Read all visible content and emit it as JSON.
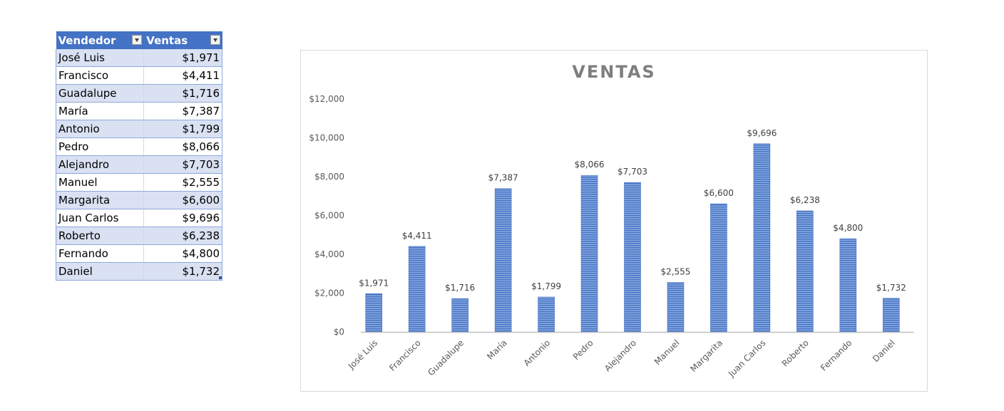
{
  "table": {
    "headers": [
      "Vendedor",
      "Ventas"
    ],
    "rows": [
      {
        "vendedor": "José Luis",
        "ventas": "$1,971"
      },
      {
        "vendedor": "Francisco",
        "ventas": "$4,411"
      },
      {
        "vendedor": "Guadalupe",
        "ventas": "$1,716"
      },
      {
        "vendedor": "María",
        "ventas": "$7,387"
      },
      {
        "vendedor": "Antonio",
        "ventas": "$1,799"
      },
      {
        "vendedor": "Pedro",
        "ventas": "$8,066"
      },
      {
        "vendedor": "Alejandro",
        "ventas": "$7,703"
      },
      {
        "vendedor": "Manuel",
        "ventas": "$2,555"
      },
      {
        "vendedor": "Margarita",
        "ventas": "$6,600"
      },
      {
        "vendedor": "Juan Carlos",
        "ventas": "$9,696"
      },
      {
        "vendedor": "Roberto",
        "ventas": "$6,238"
      },
      {
        "vendedor": "Fernando",
        "ventas": "$4,800"
      },
      {
        "vendedor": "Daniel",
        "ventas": "$1,732"
      }
    ],
    "header_color": "#4472c4",
    "band_color": "#d9e1f2"
  },
  "chart_data": {
    "type": "bar",
    "title": "VENTAS",
    "categories": [
      "José Luis",
      "Francisco",
      "Guadalupe",
      "María",
      "Antonio",
      "Pedro",
      "Alejandro",
      "Manuel",
      "Margarita",
      "Juan Carlos",
      "Roberto",
      "Fernando",
      "Daniel"
    ],
    "values": [
      1971,
      4411,
      1716,
      7387,
      1799,
      8066,
      7703,
      2555,
      6600,
      9696,
      6238,
      4800,
      1732
    ],
    "data_labels": [
      "$1,971",
      "$4,411",
      "$1,716",
      "$7,387",
      "$1,799",
      "$8,066",
      "$7,703",
      "$2,555",
      "$6,600",
      "$9,696",
      "$6,238",
      "$4,800",
      "$1,732"
    ],
    "y_ticks": [
      0,
      2000,
      4000,
      6000,
      8000,
      10000,
      12000
    ],
    "y_tick_labels": [
      "$0",
      "$2,000",
      "$4,000",
      "$6,000",
      "$8,000",
      "$10,000",
      "$12,000"
    ],
    "ylim": [
      0,
      12000
    ],
    "xlabel": "",
    "ylabel": "",
    "grid": false,
    "legend": "none",
    "bar_color": "#4472c4",
    "bar_stripe_color": "#a9c1ec"
  }
}
